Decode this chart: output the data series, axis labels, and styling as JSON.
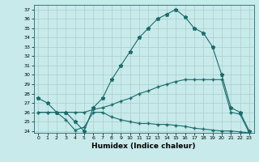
{
  "title": "",
  "xlabel": "Humidex (Indice chaleur)",
  "bg_color": "#c8eaea",
  "line_color": "#1a6b6b",
  "grid_color": "#a8cece",
  "xlim": [
    -0.5,
    23.5
  ],
  "ylim": [
    23.8,
    37.5
  ],
  "yticks": [
    24,
    25,
    26,
    27,
    28,
    29,
    30,
    31,
    32,
    33,
    34,
    35,
    36,
    37
  ],
  "xticks": [
    0,
    1,
    2,
    3,
    4,
    5,
    6,
    7,
    8,
    9,
    10,
    11,
    12,
    13,
    14,
    15,
    16,
    17,
    18,
    19,
    20,
    21,
    22,
    23
  ],
  "line1_x": [
    0,
    1,
    2,
    3,
    4,
    5,
    6,
    7,
    8,
    9,
    10,
    11,
    12,
    13,
    14,
    15,
    16,
    17,
    18,
    19,
    20,
    21,
    22,
    23
  ],
  "line1_y": [
    27.5,
    27.0,
    26.0,
    26.0,
    25.0,
    24.0,
    26.5,
    27.5,
    29.5,
    31.0,
    32.5,
    34.0,
    35.0,
    36.0,
    36.5,
    37.0,
    36.2,
    35.0,
    34.5,
    33.0,
    30.0,
    26.5,
    26.0,
    24.0
  ],
  "line2_x": [
    0,
    1,
    2,
    3,
    4,
    5,
    6,
    7,
    8,
    9,
    10,
    11,
    12,
    13,
    14,
    15,
    16,
    17,
    18,
    19,
    20,
    21,
    22,
    23
  ],
  "line2_y": [
    26.0,
    26.0,
    26.0,
    26.0,
    26.0,
    26.0,
    26.3,
    26.5,
    26.8,
    27.2,
    27.5,
    28.0,
    28.3,
    28.7,
    29.0,
    29.3,
    29.5,
    29.5,
    29.5,
    29.5,
    29.5,
    26.0,
    25.8,
    23.8
  ],
  "line3_x": [
    0,
    1,
    2,
    3,
    4,
    5,
    6,
    7,
    8,
    9,
    10,
    11,
    12,
    13,
    14,
    15,
    16,
    17,
    18,
    19,
    20,
    21,
    22,
    23
  ],
  "line3_y": [
    26.0,
    26.0,
    26.0,
    25.2,
    24.1,
    24.4,
    26.0,
    26.0,
    25.5,
    25.2,
    25.0,
    24.8,
    24.8,
    24.7,
    24.7,
    24.6,
    24.5,
    24.3,
    24.2,
    24.1,
    24.0,
    24.0,
    23.9,
    23.8
  ]
}
